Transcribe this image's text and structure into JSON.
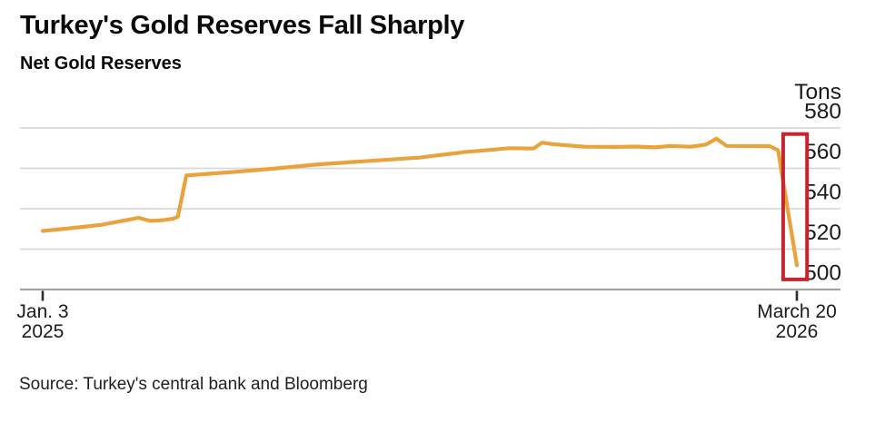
{
  "chart_data": {
    "type": "line",
    "title": "Turkey's Gold Reserves Fall Sharply",
    "subtitle": "Net Gold Reserves",
    "unit_label": "Tons",
    "source": "Source: Turkey's central bank and Bloomberg",
    "x_domain": [
      "2025-01-03",
      "2026-03-20"
    ],
    "ylim": [
      500,
      580
    ],
    "yticks": [
      580,
      560,
      540,
      520,
      500
    ],
    "xticks": [
      {
        "label": "Jan. 3",
        "sublabel": "2025",
        "date": "2025-01-03"
      },
      {
        "label": "March 20",
        "sublabel": "2026",
        "date": "2026-03-20"
      }
    ],
    "grid": "horizontal",
    "legend": "none",
    "series": [
      {
        "name": "Net Gold Reserves",
        "color": "#EAA23C",
        "points": [
          [
            "2025-01-03",
            529
          ],
          [
            "2025-01-21",
            530.5
          ],
          [
            "2025-02-06",
            532
          ],
          [
            "2025-02-22",
            534.5
          ],
          [
            "2025-02-28",
            535.5
          ],
          [
            "2025-03-07",
            534
          ],
          [
            "2025-03-14",
            534.3
          ],
          [
            "2025-03-20",
            535
          ],
          [
            "2025-03-23",
            536
          ],
          [
            "2025-03-28",
            556.5
          ],
          [
            "2025-04-10",
            557.3
          ],
          [
            "2025-04-26",
            558.3
          ],
          [
            "2025-05-20",
            560
          ],
          [
            "2025-06-13",
            562
          ],
          [
            "2025-07-10",
            563.5
          ],
          [
            "2025-08-11",
            565.3
          ],
          [
            "2025-09-06",
            568
          ],
          [
            "2025-10-03",
            570
          ],
          [
            "2025-10-17",
            569.8
          ],
          [
            "2025-10-22",
            572.7
          ],
          [
            "2025-10-28",
            572
          ],
          [
            "2025-11-16",
            570.7
          ],
          [
            "2025-12-06",
            570.6
          ],
          [
            "2025-12-16",
            570.8
          ],
          [
            "2025-12-27",
            570.4
          ],
          [
            "2026-01-05",
            571.1
          ],
          [
            "2026-01-17",
            570.7
          ],
          [
            "2026-01-26",
            571.8
          ],
          [
            "2026-02-01",
            574.7
          ],
          [
            "2026-02-07",
            571.1
          ],
          [
            "2026-03-04",
            571
          ],
          [
            "2026-03-09",
            569
          ],
          [
            "2026-03-20",
            512
          ]
        ]
      }
    ],
    "highlight_box": {
      "date_from": "2026-03-12",
      "date_to": "2026-03-26",
      "value_top": 577,
      "value_bottom": 505,
      "color": "#C7242E"
    }
  }
}
